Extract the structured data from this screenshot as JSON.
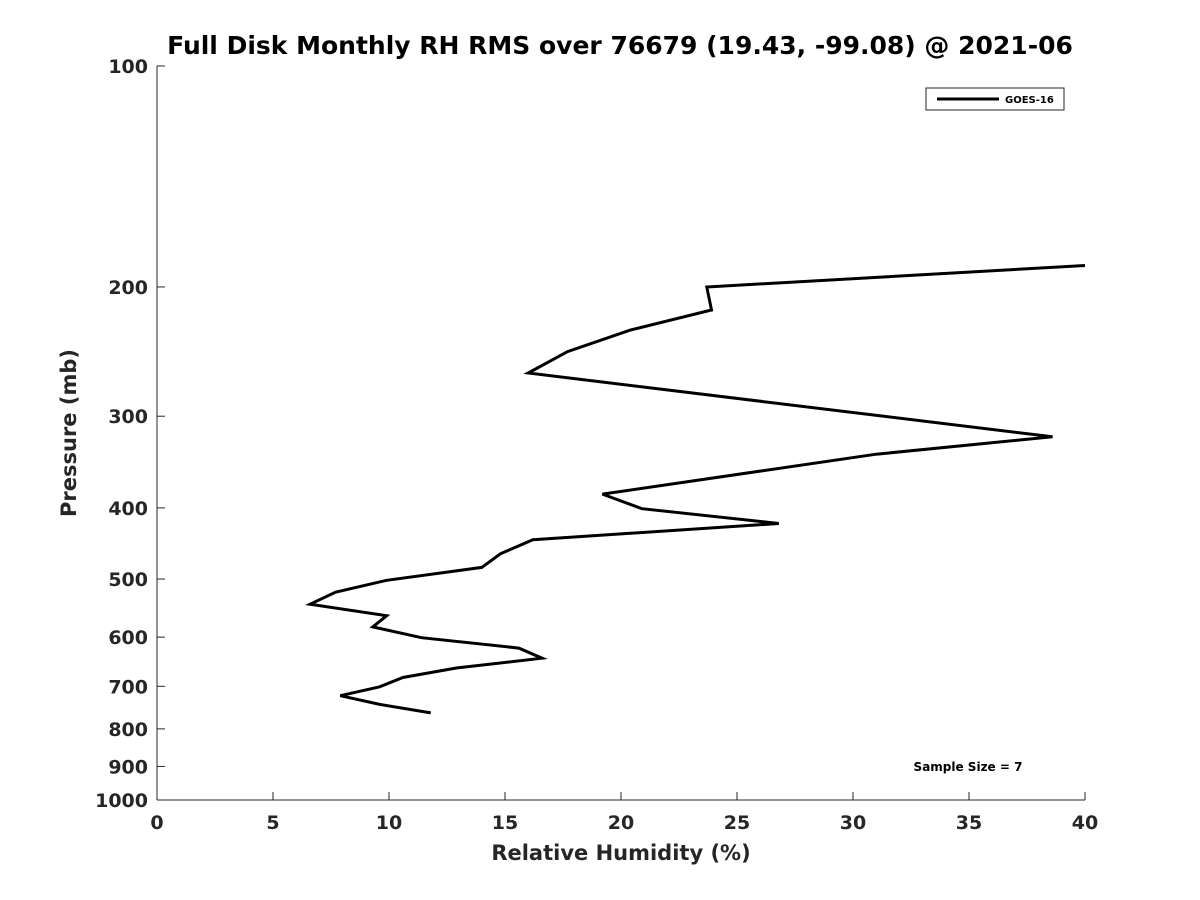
{
  "chart_data": {
    "type": "line",
    "title": "Full Disk Monthly RH RMS over 76679 (19.43, -99.08) @ 2021-06",
    "xlabel": "Relative Humidity (%)",
    "ylabel": "Pressure (mb)",
    "xlim": [
      0,
      40
    ],
    "ylim": [
      100,
      1000
    ],
    "y_scale": "log",
    "y_reversed": true,
    "x_ticks": [
      "0",
      "5",
      "10",
      "15",
      "20",
      "25",
      "30",
      "35",
      "40"
    ],
    "y_ticks": [
      "100",
      "200",
      "300",
      "400",
      "500",
      "600",
      "700",
      "800",
      "900",
      "1000"
    ],
    "grid": false,
    "legend_position": "top-right",
    "annotation": "Sample Size = 7",
    "series": [
      {
        "name": "GOES-16",
        "color": "#000000",
        "points": [
          {
            "x": 40.0,
            "y": 187
          },
          {
            "x": 23.7,
            "y": 200
          },
          {
            "x": 23.9,
            "y": 215
          },
          {
            "x": 20.4,
            "y": 229
          },
          {
            "x": 17.7,
            "y": 245
          },
          {
            "x": 16.0,
            "y": 262
          },
          {
            "x": 38.6,
            "y": 320
          },
          {
            "x": 31.0,
            "y": 338
          },
          {
            "x": 19.2,
            "y": 383
          },
          {
            "x": 20.9,
            "y": 401
          },
          {
            "x": 26.8,
            "y": 420
          },
          {
            "x": 16.2,
            "y": 442
          },
          {
            "x": 14.8,
            "y": 462
          },
          {
            "x": 14.0,
            "y": 482
          },
          {
            "x": 9.9,
            "y": 502
          },
          {
            "x": 7.7,
            "y": 521
          },
          {
            "x": 6.6,
            "y": 541
          },
          {
            "x": 9.9,
            "y": 561
          },
          {
            "x": 9.3,
            "y": 581
          },
          {
            "x": 11.4,
            "y": 601
          },
          {
            "x": 15.6,
            "y": 621
          },
          {
            "x": 16.6,
            "y": 641
          },
          {
            "x": 12.9,
            "y": 661
          },
          {
            "x": 10.6,
            "y": 681
          },
          {
            "x": 9.6,
            "y": 701
          },
          {
            "x": 7.9,
            "y": 721
          },
          {
            "x": 9.6,
            "y": 741
          },
          {
            "x": 11.8,
            "y": 761
          }
        ]
      }
    ]
  }
}
